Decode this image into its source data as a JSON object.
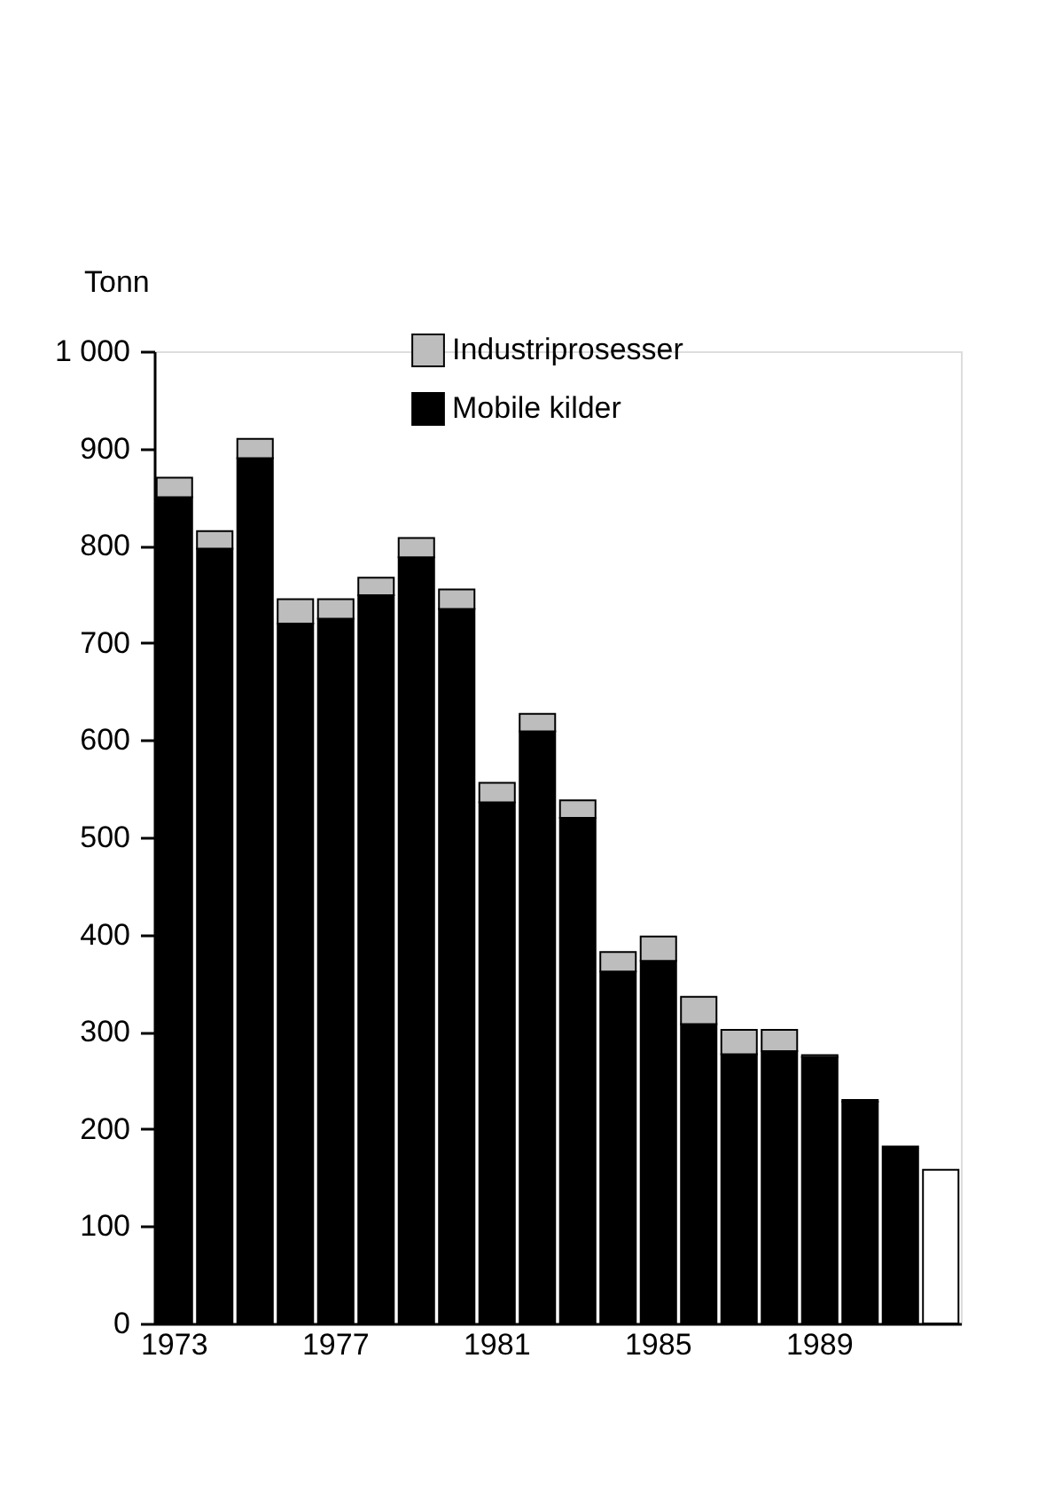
{
  "chart_data": {
    "type": "bar",
    "stacked": true,
    "ylabel": "Tonn",
    "categories": [
      "1973",
      null,
      null,
      null,
      "1977",
      null,
      null,
      null,
      "1981",
      null,
      null,
      null,
      "1985",
      null,
      null,
      null,
      "1989",
      null,
      null,
      null
    ],
    "series": [
      {
        "name": "Mobile kilder",
        "color": "#000000",
        "values": [
          850,
          797,
          890,
          720,
          725,
          749,
          788,
          735,
          536,
          609,
          520,
          362,
          373,
          308,
          277,
          280,
          274,
          228,
          182,
          null
        ]
      },
      {
        "name": "Industriprosesser",
        "color": "#bdbdbd",
        "values": [
          20,
          18,
          20,
          25,
          20,
          18,
          20,
          20,
          20,
          18,
          18,
          20,
          25,
          28,
          25,
          22,
          2,
          2,
          null,
          null
        ]
      },
      {
        "color": "#ffffff",
        "values": [
          null,
          null,
          null,
          null,
          null,
          null,
          null,
          null,
          null,
          null,
          null,
          null,
          null,
          null,
          null,
          null,
          null,
          null,
          null,
          158
        ]
      }
    ],
    "ylim": [
      0,
      1000
    ],
    "yticks": [
      0,
      100,
      200,
      300,
      400,
      500,
      600,
      700,
      800,
      900,
      {
        "value": 1000,
        "label": "1 000"
      }
    ],
    "grid": false,
    "legend": "top"
  }
}
